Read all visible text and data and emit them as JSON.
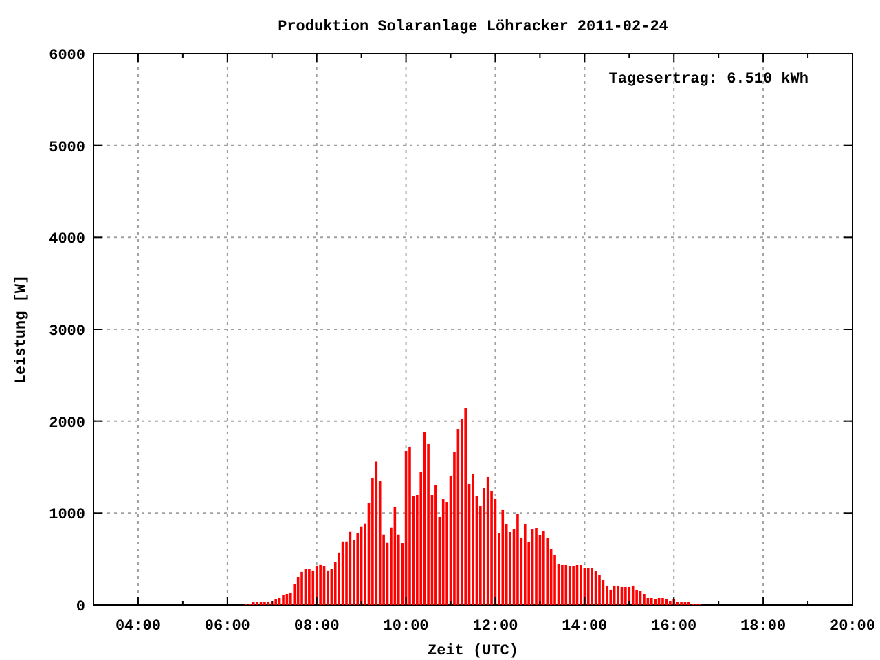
{
  "chart_data": {
    "type": "bar",
    "title": "Produktion Solaranlage Löhracker 2011-02-24",
    "xlabel": "Zeit (UTC)",
    "ylabel": "Leistung [W]",
    "annotations": [
      "Tagesertrag: 6.510 kWh"
    ],
    "x": [
      6.4167,
      6.5,
      6.5833,
      6.6667,
      6.75,
      6.8333,
      6.9167,
      7,
      7.0833,
      7.1667,
      7.25,
      7.3333,
      7.4167,
      7.5,
      7.5833,
      7.6667,
      7.75,
      7.8333,
      7.9167,
      8,
      8.0833,
      8.1667,
      8.25,
      8.3333,
      8.4167,
      8.5,
      8.5833,
      8.6667,
      8.75,
      8.8333,
      8.9167,
      9,
      9.0833,
      9.1667,
      9.25,
      9.3333,
      9.4167,
      9.5,
      9.5833,
      9.6667,
      9.75,
      9.8333,
      9.9167,
      10,
      10.0833,
      10.1667,
      10.25,
      10.3333,
      10.4167,
      10.5,
      10.5833,
      10.6667,
      10.75,
      10.8333,
      10.9167,
      11,
      11.0833,
      11.1667,
      11.25,
      11.3333,
      11.4167,
      11.5,
      11.5833,
      11.6667,
      11.75,
      11.8333,
      11.9167,
      12,
      12.0833,
      12.1667,
      12.25,
      12.3333,
      12.4167,
      12.5,
      12.5833,
      12.6667,
      12.75,
      12.8333,
      12.9167,
      13,
      13.0833,
      13.1667,
      13.25,
      13.3333,
      13.4167,
      13.5,
      13.5833,
      13.6667,
      13.75,
      13.8333,
      13.9167,
      14,
      14.0833,
      14.1667,
      14.25,
      14.3333,
      14.4167,
      14.5,
      14.5833,
      14.6667,
      14.75,
      14.8333,
      14.9167,
      15,
      15.0833,
      15.1667,
      15.25,
      15.3333,
      15.4167,
      15.5,
      15.5833,
      15.6667,
      15.75,
      15.8333,
      15.9167,
      16,
      16.0833,
      16.1667,
      16.25,
      16.3333,
      16.4167,
      16.5,
      16.5833
    ],
    "series": [
      {
        "color": "#ff0000",
        "values": [
          15,
          15,
          30,
          30,
          30,
          30,
          30,
          45,
          60,
          75,
          105,
          120,
          135,
          225,
          300,
          360,
          390,
          390,
          375,
          420,
          435,
          420,
          375,
          390,
          465,
          570,
          690,
          690,
          795,
          705,
          780,
          855,
          885,
          1110,
          1380,
          1560,
          1350,
          765,
          675,
          840,
          1065,
          765,
          673,
          1676,
          1721,
          1182,
          1197,
          1451,
          1885,
          1751,
          1197,
          1302,
          958,
          1152,
          1122,
          1407,
          1661,
          1915,
          2020,
          2140,
          1317,
          1422,
          1182,
          1077,
          1272,
          1392,
          1242,
          1152,
          778,
          1033,
          883,
          793,
          823,
          988,
          733,
          883,
          688,
          823,
          838,
          763,
          808,
          733,
          613,
          539,
          449,
          434,
          434,
          419,
          419,
          434,
          434,
          404,
          404,
          404,
          374,
          329,
          269,
          210,
          165,
          210,
          210,
          195,
          195,
          195,
          210,
          165,
          150,
          120,
          75,
          75,
          60,
          75,
          75,
          60,
          45,
          60,
          30,
          30,
          30,
          30,
          15,
          15,
          15
        ]
      }
    ],
    "xlim": [
      3,
      20
    ],
    "xticks": [
      {
        "value": 4,
        "label": "04:00"
      },
      {
        "value": 5,
        "label": null
      },
      {
        "value": 6,
        "label": "06:00"
      },
      {
        "value": 7,
        "label": null
      },
      {
        "value": 8,
        "label": "08:00"
      },
      {
        "value": 9,
        "label": null
      },
      {
        "value": 10,
        "label": "10:00"
      },
      {
        "value": 11,
        "label": null
      },
      {
        "value": 12,
        "label": "12:00"
      },
      {
        "value": 13,
        "label": null
      },
      {
        "value": 14,
        "label": "14:00"
      },
      {
        "value": 15,
        "label": null
      },
      {
        "value": 16,
        "label": "16:00"
      },
      {
        "value": 17,
        "label": null
      },
      {
        "value": 18,
        "label": "18:00"
      },
      {
        "value": 19,
        "label": null
      },
      {
        "value": 20,
        "label": "20:00"
      }
    ],
    "ylim": [
      0,
      6000
    ],
    "yticks": [
      0,
      1000,
      2000,
      3000,
      4000,
      5000,
      6000
    ],
    "grid": true
  }
}
